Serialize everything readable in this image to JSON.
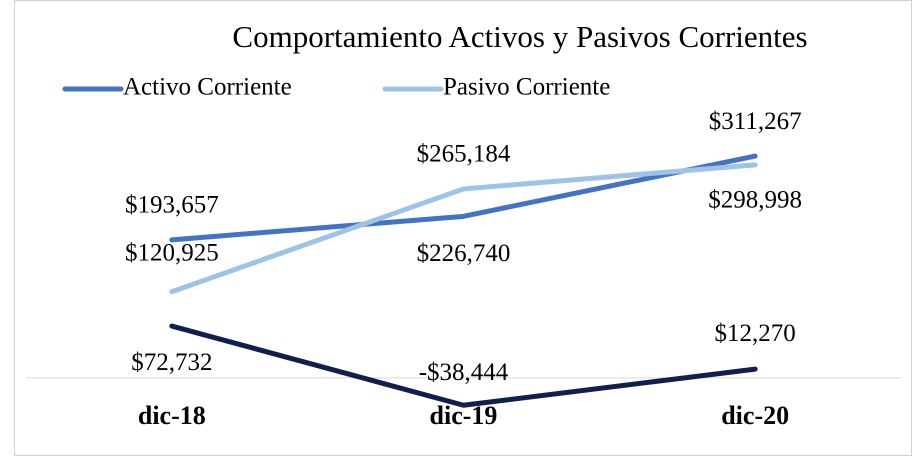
{
  "chart_data": {
    "type": "line",
    "title": "Comportamiento Activos y Pasivos Corrientes",
    "categories": [
      "dic-18",
      "dic-19",
      "dic-20"
    ],
    "series": [
      {
        "name": "Activo Corriente",
        "color": "#4472c4",
        "values": [
          193657,
          226740,
          311267
        ],
        "value_labels": [
          "$193,657",
          "$226,740",
          "$311,267"
        ]
      },
      {
        "name": "Pasivo Corriente",
        "color": "#9dc3e6",
        "values": [
          120925,
          265184,
          298998
        ],
        "value_labels": [
          "$120,925",
          "$265,184",
          "$298,998"
        ]
      },
      {
        "color": "#0f1f4f",
        "values": [
          72732,
          -38444,
          12270
        ],
        "value_labels": [
          "$72,732",
          "-$38,444",
          "$12,270"
        ]
      }
    ],
    "ylim": [
      -50000,
      350000
    ]
  }
}
